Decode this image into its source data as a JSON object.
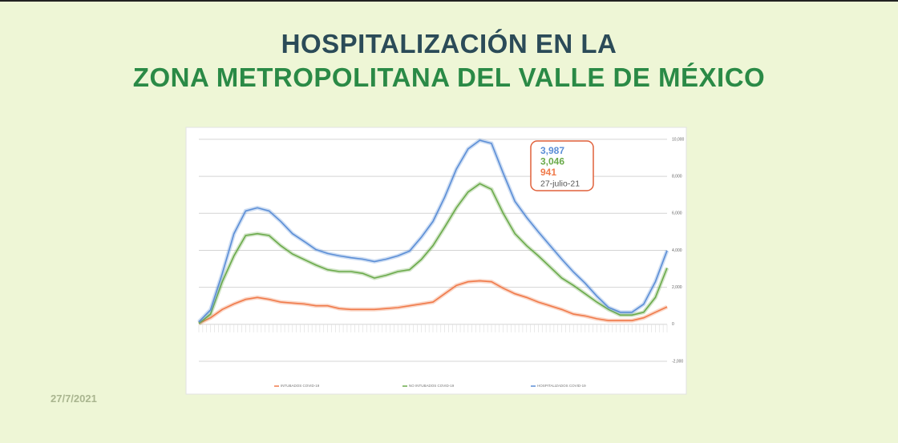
{
  "header": {
    "title_line1": "HOSPITALIZACIÓN EN LA",
    "title_line2": "ZONA METROPOLITANA DEL VALLE DE MÉXICO"
  },
  "date": "27/7/2021",
  "chart_data": {
    "type": "line",
    "ylim": [
      -2000,
      10300
    ],
    "yticks": [
      {
        "value": 10000,
        "label": "10,000"
      },
      {
        "value": 8000,
        "label": "8,000"
      },
      {
        "value": 6000,
        "label": "6,000"
      },
      {
        "value": 4000,
        "label": "4,000"
      },
      {
        "value": 2000,
        "label": "2,000"
      },
      0,
      {
        "value": -2000,
        "label": "-2,000"
      }
    ],
    "grid": true,
    "series": [
      {
        "name": "INTUBADOS COVID-19",
        "color": "#f07a4a",
        "values": [
          50,
          350,
          800,
          1100,
          1350,
          1450,
          1350,
          1200,
          1150,
          1100,
          1000,
          1000,
          850,
          800,
          800,
          800,
          850,
          900,
          1000,
          1100,
          1200,
          1650,
          2100,
          2300,
          2350,
          2300,
          1950,
          1650,
          1450,
          1200,
          1000,
          800,
          550,
          450,
          300,
          200,
          200,
          200,
          350,
          650,
          941
        ]
      },
      {
        "name": "NO INTUBADOS COVID-19",
        "color": "#6aaa4a",
        "values": [
          50,
          550,
          2300,
          3700,
          4800,
          4900,
          4800,
          4250,
          3800,
          3500,
          3200,
          2950,
          2850,
          2850,
          2750,
          2500,
          2650,
          2850,
          2950,
          3500,
          4250,
          5250,
          6300,
          7150,
          7600,
          7300,
          6000,
          4900,
          4250,
          3700,
          3100,
          2500,
          2100,
          1650,
          1200,
          800,
          500,
          500,
          650,
          1450,
          3046
        ]
      },
      {
        "name": "HOSPITALIZADOS COVID-19",
        "color": "#5b8ed6",
        "values": [
          130,
          780,
          2740,
          4900,
          6130,
          6300,
          6130,
          5560,
          4900,
          4480,
          4040,
          3830,
          3700,
          3600,
          3520,
          3390,
          3520,
          3700,
          3960,
          4700,
          5560,
          6870,
          8390,
          9480,
          9950,
          9780,
          8170,
          6650,
          5780,
          5000,
          4260,
          3520,
          2830,
          2220,
          1520,
          910,
          650,
          650,
          1090,
          2300,
          3987
        ]
      }
    ],
    "annotations": [
      "3,987",
      "3,046",
      "941",
      "27-julio-21"
    ],
    "legend": "bottom"
  }
}
